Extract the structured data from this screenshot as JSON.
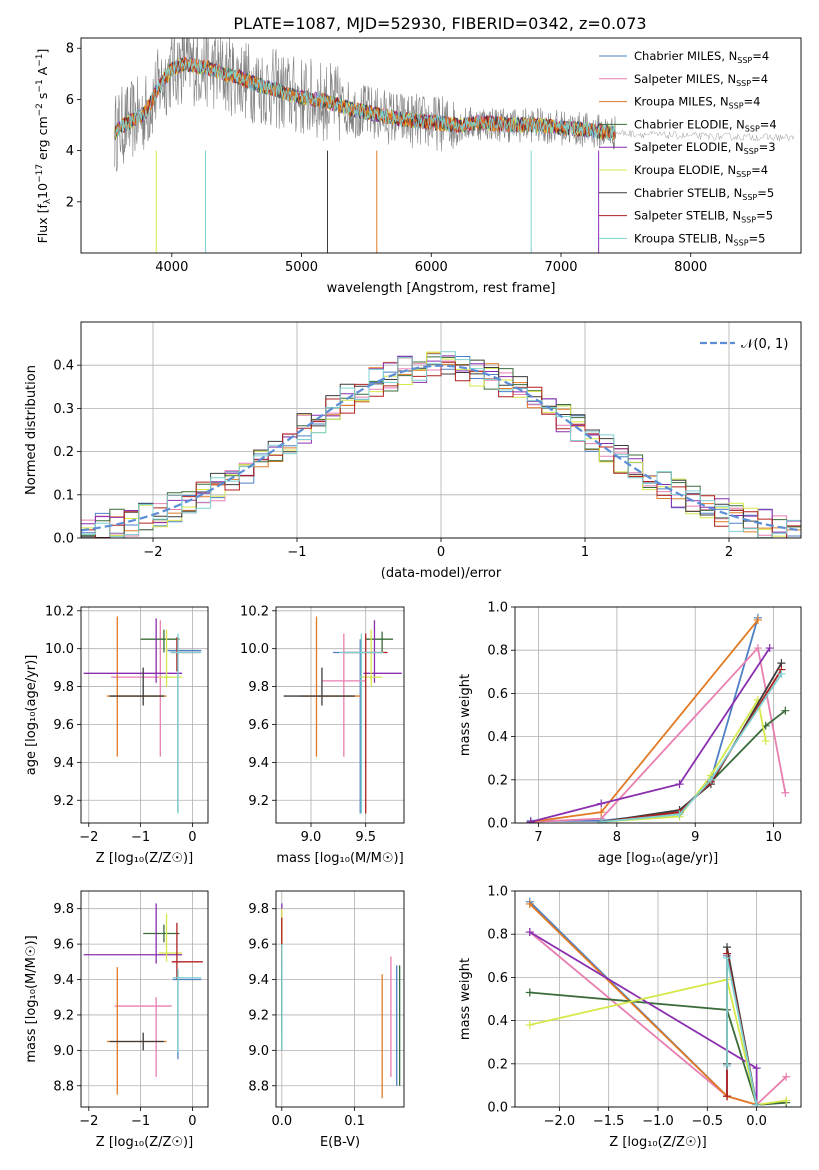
{
  "figure_title": "PLATE=1087, MJD=52930, FIBERID=0342, z=0.073",
  "series_colors": [
    "#4d80c4",
    "#e87fb0",
    "#e07a24",
    "#3a6b3a",
    "#8a2fb0",
    "#d6e84a",
    "#3c3c3c",
    "#b02020",
    "#7fd0d0"
  ],
  "chart_data": [
    {
      "id": "spectrum",
      "type": "line",
      "title": "PLATE=1087, MJD=52930, FIBERID=0342, z=0.073",
      "xlabel": "wavelength [Angstrom, rest frame]",
      "ylabel": "Flux [f_λ 10^-17 erg cm^-2 s^-1 A^-1]",
      "xlim": [
        3300,
        8850
      ],
      "ylim": [
        0,
        8.4
      ],
      "xticks": [
        4000,
        5000,
        6000,
        7000,
        8000
      ],
      "yticks": [
        2,
        4,
        6,
        8
      ],
      "observed_color": "#808080",
      "continuum_x": [
        3550,
        3600,
        3700,
        3800,
        3900,
        4000,
        4100,
        4200,
        4300,
        4400,
        4500,
        4600,
        4700,
        4800,
        4900,
        5000,
        5200,
        5400,
        5600,
        5800,
        6000,
        6200,
        6400,
        6600,
        6800,
        7000,
        7200,
        7400
      ],
      "continuum_y": [
        4.6,
        4.9,
        5.2,
        5.5,
        6.5,
        7.2,
        7.4,
        7.3,
        7.2,
        7.0,
        6.9,
        6.7,
        6.5,
        6.4,
        6.2,
        6.1,
        5.9,
        5.6,
        5.4,
        5.2,
        5.1,
        5.0,
        5.1,
        5.0,
        5.0,
        4.9,
        4.8,
        4.7
      ],
      "legend": [
        {
          "label": "Chabrier MILES, N_SSP=4"
        },
        {
          "label": "Salpeter MILES, N_SSP=4"
        },
        {
          "label": "Kroupa MILES, N_SSP=4"
        },
        {
          "label": "Chabrier ELODIE, N_SSP=4"
        },
        {
          "label": "Salpeter ELODIE, N_SSP=3"
        },
        {
          "label": "Kroupa ELODIE, N_SSP=4"
        },
        {
          "label": "Chabrier STELIB, N_SSP=5"
        },
        {
          "label": "Salpeter STELIB, N_SSP=5"
        },
        {
          "label": "Kroupa STELIB, N_SSP=5"
        }
      ]
    },
    {
      "id": "residuals",
      "type": "histogram",
      "xlabel": "(data-model)/error",
      "ylabel": "Normed distribution",
      "xlim": [
        -2.5,
        2.5
      ],
      "ylim": [
        0,
        0.5
      ],
      "xticks": [
        -2,
        -1,
        0,
        1,
        2
      ],
      "yticks": [
        0.0,
        0.1,
        0.2,
        0.3,
        0.4
      ],
      "legend_label": "𝒩(0, 1)",
      "legend_color": "#5b8ed6"
    },
    {
      "id": "age_vs_Z",
      "type": "errorbar",
      "xlabel": "Z [log₁₀(Z/Z☉)]",
      "ylabel": "age  [log₁₀(age/yr)]",
      "xlim": [
        -2.15,
        0.3
      ],
      "ylim": [
        9.08,
        10.22
      ],
      "xticks": [
        -2,
        -1,
        0
      ],
      "yticks": [
        9.2,
        9.4,
        9.6,
        9.8,
        10.0,
        10.2
      ],
      "points": [
        {
          "s": 0,
          "x": -0.28,
          "y": 9.99,
          "xlo": 0.2,
          "xhi": 0.45,
          "ylo": 0.85,
          "yhi": 0.07
        },
        {
          "s": 1,
          "x": -0.62,
          "y": 9.85,
          "xlo": 0.95,
          "xhi": 0.2,
          "ylo": 0.42,
          "yhi": 0.3
        },
        {
          "s": 2,
          "x": -1.45,
          "y": 9.75,
          "xlo": 0.2,
          "xhi": 0.95,
          "ylo": 0.32,
          "yhi": 0.42
        },
        {
          "s": 3,
          "x": -0.55,
          "y": 10.05,
          "xlo": 0.45,
          "xhi": 0.3,
          "ylo": 0.07,
          "yhi": 0.05
        },
        {
          "s": 4,
          "x": -0.7,
          "y": 9.87,
          "xlo": 1.4,
          "xhi": 0.5,
          "ylo": 0.05,
          "yhi": 0.29
        },
        {
          "s": 5,
          "x": -0.5,
          "y": 9.85,
          "xlo": 0.15,
          "xhi": 0.3,
          "ylo": 0.05,
          "yhi": 0.25
        },
        {
          "s": 6,
          "x": -0.95,
          "y": 9.75,
          "xlo": 0.65,
          "xhi": 0.4,
          "ylo": 0.05,
          "yhi": 0.15
        },
        {
          "s": 7,
          "x": -0.3,
          "y": 9.98,
          "xlo": 0.1,
          "xhi": 0.45,
          "ylo": 0.1,
          "yhi": 0.08
        },
        {
          "s": 8,
          "x": -0.28,
          "y": 9.98,
          "xlo": 0.15,
          "xhi": 0.45,
          "ylo": 0.85,
          "yhi": 0.1
        }
      ]
    },
    {
      "id": "age_vs_mass",
      "type": "errorbar",
      "xlabel": "mass [log₁₀(M/M☉)]",
      "ylabel": "",
      "xlim": [
        8.68,
        9.85
      ],
      "ylim": [
        9.08,
        10.22
      ],
      "xticks": [
        9.0,
        9.5
      ],
      "yticks": [
        9.2,
        9.4,
        9.6,
        9.8,
        10.0,
        10.2
      ],
      "points": [
        {
          "s": 0,
          "x": 9.45,
          "y": 9.98,
          "xlo": 0.25,
          "xhi": 0.2,
          "ylo": 0.85,
          "yhi": 0.07
        },
        {
          "s": 1,
          "x": 9.3,
          "y": 9.83,
          "xlo": 0.2,
          "xhi": 0.2,
          "ylo": 0.4,
          "yhi": 0.25
        },
        {
          "s": 2,
          "x": 9.05,
          "y": 9.75,
          "xlo": 0.15,
          "xhi": 0.4,
          "ylo": 0.32,
          "yhi": 0.42
        },
        {
          "s": 3,
          "x": 9.65,
          "y": 10.05,
          "xlo": 0.15,
          "xhi": 0.1,
          "ylo": 0.07,
          "yhi": 0.04
        },
        {
          "s": 4,
          "x": 9.58,
          "y": 9.87,
          "xlo": 0.1,
          "xhi": 0.25,
          "ylo": 0.05,
          "yhi": 0.28
        },
        {
          "s": 5,
          "x": 9.55,
          "y": 9.85,
          "xlo": 0.1,
          "xhi": 0.1,
          "ylo": 0.05,
          "yhi": 0.25
        },
        {
          "s": 6,
          "x": 9.1,
          "y": 9.75,
          "xlo": 0.35,
          "xhi": 0.3,
          "ylo": 0.05,
          "yhi": 0.15
        },
        {
          "s": 7,
          "x": 9.5,
          "y": 9.98,
          "xlo": 0.2,
          "xhi": 0.2,
          "ylo": 0.85,
          "yhi": 0.1
        },
        {
          "s": 8,
          "x": 9.46,
          "y": 9.98,
          "xlo": 0.2,
          "xhi": 0.2,
          "ylo": 0.85,
          "yhi": 0.1
        }
      ]
    },
    {
      "id": "mass_weight_vs_age",
      "type": "line",
      "xlabel": "age  [log₁₀(age/yr)]",
      "ylabel": "mass weight",
      "xlim": [
        6.7,
        10.35
      ],
      "ylim": [
        0,
        1.0
      ],
      "xticks": [
        7,
        8,
        9,
        10
      ],
      "yticks": [
        0.0,
        0.2,
        0.4,
        0.6,
        0.8,
        1.0
      ],
      "series": [
        {
          "s": 0,
          "x": [
            6.9,
            7.8,
            8.8,
            9.2,
            9.8
          ],
          "y": [
            0.01,
            0.01,
            0.05,
            0.2,
            0.95
          ]
        },
        {
          "s": 1,
          "x": [
            6.9,
            7.8,
            9.8,
            10.15
          ],
          "y": [
            0.005,
            0.02,
            0.81,
            0.14
          ]
        },
        {
          "s": 2,
          "x": [
            6.9,
            7.8,
            9.8
          ],
          "y": [
            0.005,
            0.05,
            0.94
          ]
        },
        {
          "s": 3,
          "x": [
            7.8,
            8.8,
            9.2,
            9.9,
            10.15
          ],
          "y": [
            0.005,
            0.05,
            0.19,
            0.45,
            0.52
          ]
        },
        {
          "s": 4,
          "x": [
            6.9,
            7.8,
            8.8,
            9.95
          ],
          "y": [
            0.005,
            0.09,
            0.18,
            0.81
          ]
        },
        {
          "s": 5,
          "x": [
            7.8,
            8.8,
            9.2,
            9.8,
            9.9
          ],
          "y": [
            0.005,
            0.03,
            0.22,
            0.57,
            0.38
          ]
        },
        {
          "s": 6,
          "x": [
            7.8,
            8.8,
            9.2,
            10.1
          ],
          "y": [
            0.005,
            0.06,
            0.18,
            0.74
          ]
        },
        {
          "s": 7,
          "x": [
            7.8,
            8.8,
            9.2,
            10.1
          ],
          "y": [
            0.005,
            0.05,
            0.19,
            0.71
          ]
        },
        {
          "s": 8,
          "x": [
            7.8,
            8.8,
            9.2,
            10.1
          ],
          "y": [
            0.005,
            0.04,
            0.2,
            0.69
          ]
        }
      ]
    },
    {
      "id": "mass_vs_Z",
      "type": "errorbar",
      "xlabel": "Z [log₁₀(Z/Z☉)]",
      "ylabel": "mass [log₁₀(M/M☉)]",
      "xlim": [
        -2.15,
        0.3
      ],
      "ylim": [
        8.68,
        9.9
      ],
      "xticks": [
        -2,
        -1,
        0
      ],
      "yticks": [
        8.8,
        9.0,
        9.2,
        9.4,
        9.6,
        9.8
      ],
      "points": [
        {
          "s": 0,
          "x": -0.28,
          "y": 9.4,
          "xlo": 0.1,
          "xhi": 0.45,
          "ylo": 0.45,
          "yhi": 0.05
        },
        {
          "s": 1,
          "x": -0.7,
          "y": 9.25,
          "xlo": 0.8,
          "xhi": 0.3,
          "ylo": 0.4,
          "yhi": 0.05
        },
        {
          "s": 2,
          "x": -1.45,
          "y": 9.05,
          "xlo": 0.2,
          "xhi": 0.95,
          "ylo": 0.3,
          "yhi": 0.42
        },
        {
          "s": 3,
          "x": -0.55,
          "y": 9.66,
          "xlo": 0.4,
          "xhi": 0.3,
          "ylo": 0.05,
          "yhi": 0.05
        },
        {
          "s": 4,
          "x": -0.7,
          "y": 9.54,
          "xlo": 1.4,
          "xhi": 0.5,
          "ylo": 0.05,
          "yhi": 0.29
        },
        {
          "s": 5,
          "x": -0.5,
          "y": 9.55,
          "xlo": 0.15,
          "xhi": 0.3,
          "ylo": 0.05,
          "yhi": 0.22
        },
        {
          "s": 6,
          "x": -0.95,
          "y": 9.05,
          "xlo": 0.65,
          "xhi": 0.4,
          "ylo": 0.05,
          "yhi": 0.05
        },
        {
          "s": 7,
          "x": -0.3,
          "y": 9.5,
          "xlo": 0.1,
          "xhi": 0.5,
          "ylo": 0.1,
          "yhi": 0.22
        },
        {
          "s": 8,
          "x": -0.28,
          "y": 9.41,
          "xlo": 0.1,
          "xhi": 0.45,
          "ylo": 0.42,
          "yhi": 0.05
        }
      ]
    },
    {
      "id": "mass_vs_ebv",
      "type": "errorbar",
      "xlabel": "E(B-V)",
      "ylabel": "",
      "xlim": [
        -0.008,
        0.168
      ],
      "ylim": [
        8.68,
        9.9
      ],
      "xticks": [
        0.0,
        0.1
      ],
      "yticks": [
        8.8,
        9.0,
        9.2,
        9.4,
        9.6,
        9.8
      ],
      "points": [
        {
          "s": 0,
          "x": 0.158,
          "y": 9.15,
          "xlo": 0,
          "xhi": 0,
          "ylo": 0.35,
          "yhi": 0.33
        },
        {
          "s": 1,
          "x": 0.15,
          "y": 9.2,
          "xlo": 0,
          "xhi": 0,
          "ylo": 0.35,
          "yhi": 0.33
        },
        {
          "s": 2,
          "x": 0.138,
          "y": 9.1,
          "xlo": 0,
          "xhi": 0,
          "ylo": 0.37,
          "yhi": 0.33
        },
        {
          "s": 3,
          "x": 0.0,
          "y": 9.4,
          "xlo": 0,
          "xhi": 0,
          "ylo": 0.3,
          "yhi": 0.3
        },
        {
          "s": 4,
          "x": 0.0,
          "y": 9.55,
          "xlo": 0,
          "xhi": 0,
          "ylo": 0.1,
          "yhi": 0.28
        },
        {
          "s": 5,
          "x": 0.0,
          "y": 9.6,
          "xlo": 0,
          "xhi": 0,
          "ylo": 0.1,
          "yhi": 0.2
        },
        {
          "s": 6,
          "x": 0.0,
          "y": 9.3,
          "xlo": 0,
          "xhi": 0,
          "ylo": 0.3,
          "yhi": 0.3
        },
        {
          "s": 7,
          "x": 0.0,
          "y": 9.6,
          "xlo": 0,
          "xhi": 0,
          "ylo": 0.1,
          "yhi": 0.15
        },
        {
          "s": 8,
          "x": 0.0,
          "y": 9.3,
          "xlo": 0,
          "xhi": 0,
          "ylo": 0.3,
          "yhi": 0.3
        },
        {
          "s": 3,
          "x": 0.162,
          "y": 9.15,
          "xlo": 0,
          "xhi": 0,
          "ylo": 0.35,
          "yhi": 0.33
        }
      ]
    },
    {
      "id": "mass_weight_vs_Z",
      "type": "line",
      "xlabel": "Z [log₁₀(Z/Z☉)]",
      "ylabel": "mass weight",
      "xlim": [
        -2.45,
        0.45
      ],
      "ylim": [
        0,
        1.0
      ],
      "xticks": [
        -2.0,
        -1.5,
        -1.0,
        -0.5,
        0.0
      ],
      "xticklabels": [
        "−2.0",
        "−1.5",
        "−1.0",
        "−0.5",
        "0.0"
      ],
      "yticks": [
        0.0,
        0.2,
        0.4,
        0.6,
        0.8,
        1.0
      ],
      "series": [
        {
          "s": 0,
          "x": [
            -2.3,
            -0.3,
            -0.3,
            0.0
          ],
          "y": [
            0.95,
            0.05,
            0.7,
            0.01
          ]
        },
        {
          "s": 1,
          "x": [
            -2.3,
            -0.3,
            0.0,
            0.3
          ],
          "y": [
            0.81,
            0.05,
            0.01,
            0.14
          ]
        },
        {
          "s": 2,
          "x": [
            -2.3,
            -0.3,
            0.0
          ],
          "y": [
            0.94,
            0.05,
            0.01
          ]
        },
        {
          "s": 3,
          "x": [
            -2.3,
            -0.3,
            0.0,
            0.3
          ],
          "y": [
            0.53,
            0.45,
            0.01,
            0.02
          ]
        },
        {
          "s": 4,
          "x": [
            -2.3,
            0.0,
            0.0
          ],
          "y": [
            0.81,
            0.18,
            0.01
          ]
        },
        {
          "s": 5,
          "x": [
            -2.3,
            -0.3,
            0.0,
            0.3
          ],
          "y": [
            0.38,
            0.59,
            0.01,
            0.03
          ]
        },
        {
          "s": 6,
          "x": [
            -0.3,
            -0.3,
            0.0
          ],
          "y": [
            0.2,
            0.74,
            0.01
          ]
        },
        {
          "s": 7,
          "x": [
            -0.3,
            -0.3,
            0.0
          ],
          "y": [
            0.05,
            0.71,
            0.01
          ]
        },
        {
          "s": 8,
          "x": [
            -0.3,
            -0.3,
            0.0
          ],
          "y": [
            0.19,
            0.69,
            0.01
          ]
        }
      ]
    }
  ]
}
